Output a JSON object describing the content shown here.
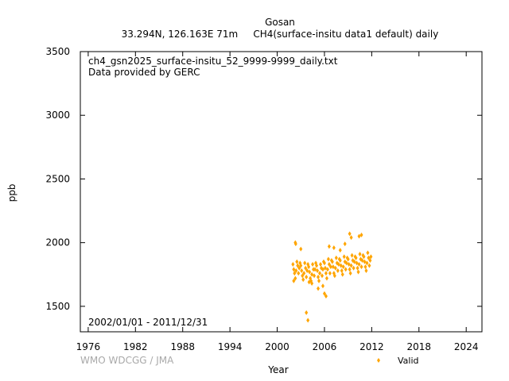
{
  "header": {
    "station": "Gosan",
    "subtitle": "33.294N, 126.163E 71m     CH4(surface-insitu data1 default) daily"
  },
  "annotations": {
    "filename": "ch4_gsn2025_surface-insitu_52_9999-9999_daily.txt",
    "provider": "Data provided by GERC",
    "period": "2002/01/01 - 2011/12/31"
  },
  "footer": {
    "credit": "WMO WDCGG / JMA"
  },
  "chart_data": {
    "type": "scatter",
    "xlabel": "Year",
    "ylabel": "ppb",
    "xlim": [
      1975,
      2026
    ],
    "ylim": [
      1300,
      3500
    ],
    "x_ticks": [
      1976,
      1982,
      1988,
      1994,
      2000,
      2006,
      2012,
      2018,
      2024
    ],
    "y_ticks": [
      1500,
      2000,
      2500,
      3000,
      3500
    ],
    "legend": {
      "label": "Valid",
      "position": "bottom-right"
    },
    "colors": {
      "valid": "#ffa500"
    },
    "series": [
      {
        "name": "Valid",
        "x": [
          2002.0,
          2002.1,
          2002.2,
          2002.3,
          2002.4,
          2002.5,
          2002.6,
          2002.7,
          2002.8,
          2002.9,
          2003.0,
          2003.1,
          2003.2,
          2003.3,
          2003.4,
          2003.5,
          2003.6,
          2003.7,
          2003.8,
          2003.9,
          2004.0,
          2004.1,
          2004.2,
          2004.3,
          2004.4,
          2004.5,
          2004.6,
          2004.7,
          2004.8,
          2004.9,
          2005.0,
          2005.1,
          2005.2,
          2005.3,
          2005.4,
          2005.5,
          2005.6,
          2005.7,
          2005.8,
          2005.9,
          2006.0,
          2006.1,
          2006.2,
          2006.3,
          2006.4,
          2006.5,
          2006.6,
          2006.7,
          2006.8,
          2006.9,
          2007.0,
          2007.1,
          2007.2,
          2007.3,
          2007.4,
          2007.5,
          2007.6,
          2007.7,
          2007.8,
          2007.9,
          2008.0,
          2008.1,
          2008.2,
          2008.3,
          2008.4,
          2008.5,
          2008.6,
          2008.7,
          2008.8,
          2008.9,
          2009.0,
          2009.1,
          2009.2,
          2009.3,
          2009.4,
          2009.5,
          2009.6,
          2009.7,
          2009.8,
          2009.9,
          2010.0,
          2010.1,
          2010.2,
          2010.3,
          2010.4,
          2010.5,
          2010.6,
          2010.7,
          2010.8,
          2010.9,
          2011.0,
          2011.1,
          2011.2,
          2011.3,
          2011.4,
          2011.5,
          2011.6,
          2011.7,
          2011.8,
          2011.9,
          2002.3,
          2002.35,
          2003.0,
          2003.7,
          2003.9,
          2004.05,
          2005.8,
          2006.0,
          2006.6,
          2007.2,
          2008.0,
          2009.2,
          2009.4,
          2010.4,
          2010.7,
          2005.2,
          2004.4,
          2002.1,
          2006.2,
          2008.6
        ],
        "y": [
          1830,
          1790,
          1760,
          1720,
          1780,
          1850,
          1820,
          1760,
          1800,
          1840,
          1820,
          1780,
          1740,
          1710,
          1760,
          1840,
          1800,
          1730,
          1780,
          1830,
          1810,
          1770,
          1720,
          1700,
          1750,
          1830,
          1790,
          1740,
          1790,
          1840,
          1820,
          1780,
          1730,
          1700,
          1760,
          1830,
          1800,
          1740,
          1790,
          1850,
          1840,
          1800,
          1760,
          1720,
          1790,
          1870,
          1830,
          1760,
          1810,
          1860,
          1850,
          1810,
          1760,
          1740,
          1800,
          1880,
          1840,
          1780,
          1830,
          1870,
          1860,
          1820,
          1780,
          1750,
          1810,
          1890,
          1850,
          1790,
          1840,
          1880,
          1870,
          1830,
          1790,
          1760,
          1820,
          1900,
          1860,
          1800,
          1850,
          1890,
          1880,
          1840,
          1800,
          1770,
          1830,
          1910,
          1870,
          1810,
          1860,
          1900,
          1890,
          1850,
          1810,
          1780,
          1840,
          1920,
          1880,
          1820,
          1860,
          1890,
          2000,
          1990,
          1950,
          1450,
          1390,
          1690,
          1660,
          1600,
          1970,
          1960,
          1940,
          2070,
          2040,
          2050,
          2060,
          1640,
          1680,
          1700,
          1580,
          1990
        ]
      }
    ]
  }
}
